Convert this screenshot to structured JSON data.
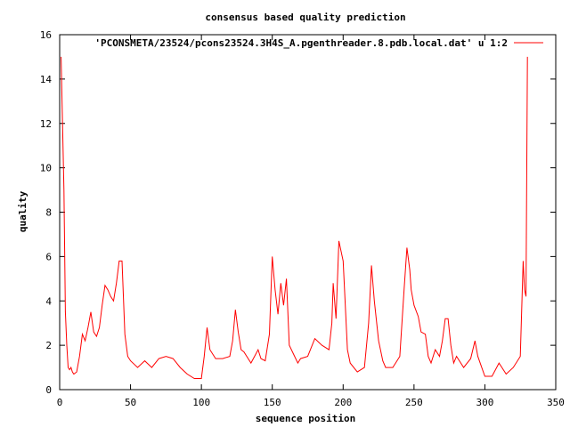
{
  "chart_data": {
    "type": "line",
    "title": "consensus based quality prediction",
    "xlabel": "sequence position",
    "ylabel": "quality",
    "xlim": [
      0,
      350
    ],
    "ylim": [
      0,
      16
    ],
    "xticks": [
      "0",
      "50",
      "100",
      "150",
      "200",
      "250",
      "300",
      "350"
    ],
    "yticks": [
      "0",
      "2",
      "4",
      "6",
      "8",
      "10",
      "12",
      "14",
      "16"
    ],
    "grid": false,
    "legend_position": "top-right",
    "series": [
      {
        "name": "'PCONSMETA/23524/pcons23524.3H4S_A.pgenthreader.8.pdb.local.dat' u 1:2",
        "color": "#ff0000",
        "x": [
          1,
          2,
          3,
          4,
          5,
          6,
          7,
          8,
          9,
          10,
          12,
          14,
          16,
          18,
          20,
          22,
          24,
          26,
          28,
          30,
          32,
          34,
          36,
          38,
          40,
          42,
          44,
          46,
          48,
          50,
          55,
          60,
          65,
          70,
          75,
          80,
          85,
          90,
          95,
          100,
          102,
          104,
          106,
          110,
          115,
          120,
          122,
          124,
          126,
          128,
          130,
          135,
          140,
          142,
          145,
          148,
          150,
          152,
          154,
          156,
          158,
          160,
          162,
          165,
          168,
          170,
          175,
          180,
          185,
          190,
          192,
          193,
          195,
          197,
          200,
          203,
          205,
          210,
          215,
          218,
          220,
          222,
          225,
          228,
          230,
          235,
          240,
          243,
          245,
          247,
          248,
          250,
          253,
          255,
          258,
          260,
          262,
          265,
          268,
          270,
          272,
          274,
          276,
          278,
          280,
          285,
          290,
          293,
          295,
          300,
          305,
          310,
          315,
          320,
          325,
          327,
          328,
          329,
          330
        ],
        "y": [
          15.0,
          12.0,
          9.0,
          3.5,
          2.0,
          1.0,
          0.9,
          1.0,
          0.8,
          0.7,
          0.8,
          1.5,
          2.5,
          2.2,
          2.8,
          3.5,
          2.6,
          2.4,
          2.8,
          3.8,
          4.7,
          4.5,
          4.2,
          4.0,
          4.8,
          5.8,
          5.8,
          2.5,
          1.5,
          1.3,
          1.0,
          1.3,
          1.0,
          1.4,
          1.5,
          1.4,
          1.0,
          0.7,
          0.5,
          0.5,
          1.5,
          2.8,
          1.8,
          1.4,
          1.4,
          1.5,
          2.2,
          3.6,
          2.6,
          1.8,
          1.7,
          1.2,
          1.8,
          1.4,
          1.3,
          2.5,
          6.0,
          4.5,
          3.4,
          4.8,
          3.8,
          5.0,
          2.0,
          1.6,
          1.2,
          1.4,
          1.5,
          2.3,
          2.0,
          1.8,
          3.0,
          4.8,
          3.2,
          6.7,
          5.8,
          1.8,
          1.2,
          0.8,
          1.0,
          3.0,
          5.6,
          4.0,
          2.2,
          1.3,
          1.0,
          1.0,
          1.5,
          4.5,
          6.4,
          5.4,
          4.5,
          3.8,
          3.3,
          2.6,
          2.5,
          1.5,
          1.2,
          1.8,
          1.5,
          2.2,
          3.2,
          3.2,
          2.0,
          1.2,
          1.5,
          1.0,
          1.4,
          2.2,
          1.5,
          0.6,
          0.6,
          1.2,
          0.7,
          1.0,
          1.5,
          5.8,
          4.5,
          4.2,
          15.0
        ]
      }
    ]
  }
}
